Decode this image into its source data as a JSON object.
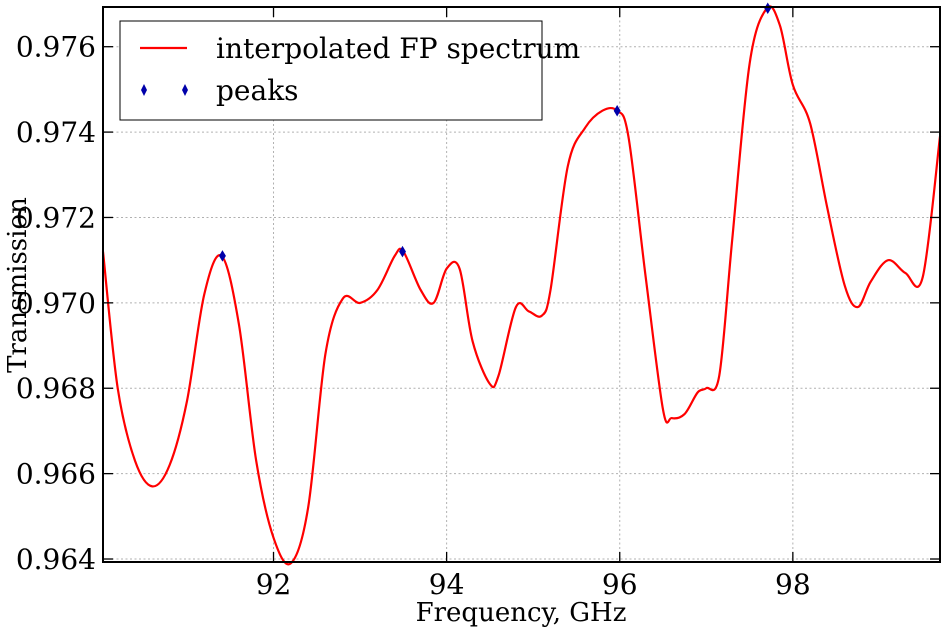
{
  "chart_data": {
    "type": "line",
    "xlabel": "Frequency, GHz",
    "ylabel": "Transmission",
    "xlim": [
      90.03,
      99.7
    ],
    "ylim": [
      0.96393,
      0.97693
    ],
    "xticks": [
      92,
      94,
      96,
      98
    ],
    "xtick_labels": [
      "92",
      "94",
      "96",
      "98"
    ],
    "yticks": [
      0.964,
      0.966,
      0.968,
      0.97,
      0.972,
      0.974,
      0.976
    ],
    "ytick_labels": [
      "0.964",
      "0.966",
      "0.968",
      "0.970",
      "0.972",
      "0.974",
      "0.976"
    ],
    "grid": true,
    "legend_position": "top-left",
    "series": [
      {
        "name": "interpolated FP spectrum",
        "kind": "line",
        "color": "#ff0000",
        "x": [
          90.03,
          90.2,
          90.4,
          90.6,
          90.8,
          91.0,
          91.2,
          91.4,
          91.6,
          91.8,
          92.0,
          92.2,
          92.4,
          92.6,
          92.8,
          93.0,
          93.2,
          93.4,
          93.5,
          93.7,
          93.85,
          94.0,
          94.15,
          94.3,
          94.5,
          94.6,
          94.8,
          94.95,
          95.1,
          95.2,
          95.4,
          95.6,
          95.8,
          95.97,
          96.1,
          96.3,
          96.5,
          96.6,
          96.75,
          96.9,
          97.0,
          97.15,
          97.3,
          97.5,
          97.7,
          97.85,
          98.0,
          98.2,
          98.4,
          98.6,
          98.75,
          98.9,
          99.1,
          99.3,
          99.5,
          99.7
        ],
        "y": [
          0.9712,
          0.968,
          0.9663,
          0.9657,
          0.9662,
          0.9677,
          0.9702,
          0.9711,
          0.9695,
          0.9663,
          0.9645,
          0.9639,
          0.9652,
          0.9688,
          0.9701,
          0.97,
          0.9703,
          0.9711,
          0.9712,
          0.9703,
          0.97,
          0.9708,
          0.9708,
          0.9691,
          0.9681,
          0.9683,
          0.9699,
          0.9698,
          0.9697,
          0.9703,
          0.9732,
          0.9741,
          0.9745,
          0.9745,
          0.9739,
          0.9706,
          0.9675,
          0.9673,
          0.9674,
          0.9679,
          0.968,
          0.9683,
          0.9715,
          0.9756,
          0.9769,
          0.9765,
          0.9751,
          0.9742,
          0.9722,
          0.9704,
          0.9699,
          0.9705,
          0.971,
          0.9707,
          0.9706,
          0.9739
        ]
      },
      {
        "name": "peaks",
        "kind": "marker",
        "color": "#0000aa",
        "x": [
          91.41,
          93.49,
          95.97,
          97.71
        ],
        "y": [
          0.9711,
          0.9712,
          0.9745,
          0.9769
        ]
      }
    ]
  }
}
